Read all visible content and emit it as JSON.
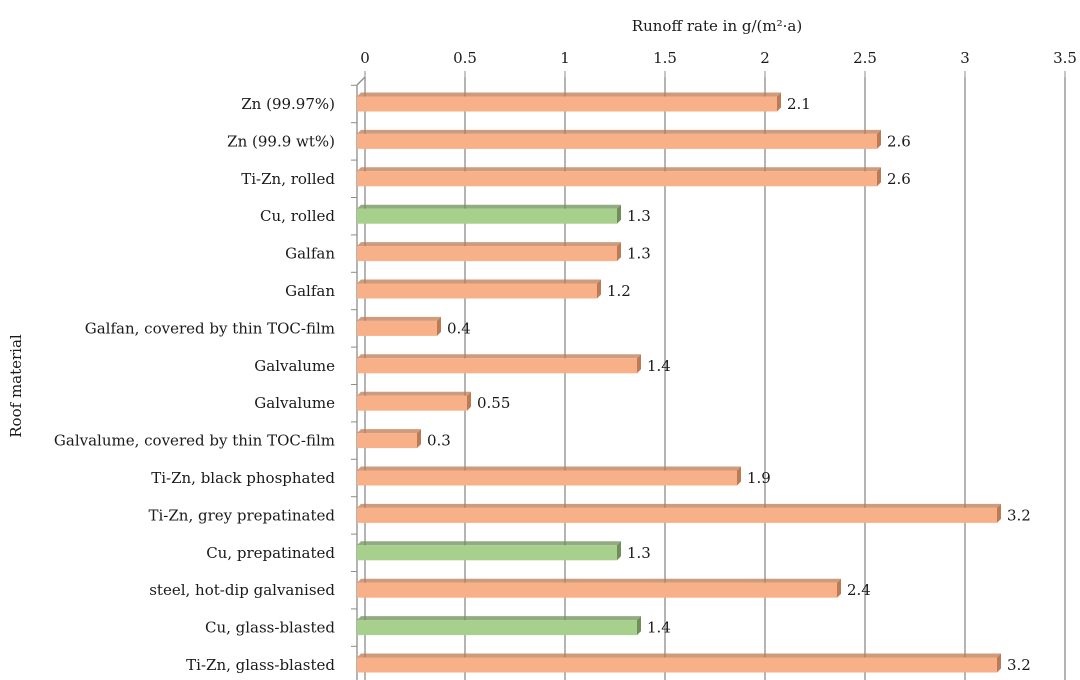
{
  "chart_data": {
    "type": "bar",
    "orientation": "horizontal",
    "style": "3d",
    "title": "",
    "xlabel": "Runoff rate in g/(m²·a)",
    "ylabel": "Roof material",
    "xlim": [
      0,
      3.5
    ],
    "xticks": [
      "0",
      "0.5",
      "1",
      "1.5",
      "2",
      "2.5",
      "3",
      "3.5"
    ],
    "xtick_values": [
      0,
      0.5,
      1,
      1.5,
      2,
      2.5,
      3,
      3.5
    ],
    "grid": true,
    "x_axis_position": "top",
    "categories": [
      "Zn (99.97%)",
      "Zn (99.9 wt%)",
      "Ti-Zn, rolled",
      "Cu, rolled",
      "Galfan",
      "Galfan",
      "Galfan, covered by thin TOC-film",
      "Galvalume",
      "Galvalume",
      "Galvalume, covered by thin TOC-film",
      "Ti-Zn, black phosphated",
      "Ti-Zn, grey prepatinated",
      "Cu, prepatinated",
      "steel, hot-dip galvanised",
      "Cu, glass-blasted",
      "Ti-Zn, glass-blasted"
    ],
    "values": [
      2.1,
      2.6,
      2.6,
      1.3,
      1.3,
      1.2,
      0.4,
      1.4,
      0.55,
      0.3,
      1.9,
      3.2,
      1.3,
      2.4,
      1.4,
      3.2
    ],
    "labels": [
      "2.1",
      "2.6",
      "2.6",
      "1.3",
      "1.3",
      "1.2",
      "0.4",
      "1.4",
      "0.55",
      "0.3",
      "1.9",
      "3.2",
      "1.3",
      "2.4",
      "1.4",
      "3.2"
    ],
    "bar_colors": [
      "orange",
      "orange",
      "orange",
      "green",
      "orange",
      "orange",
      "orange",
      "orange",
      "orange",
      "orange",
      "orange",
      "orange",
      "green",
      "orange",
      "green",
      "orange"
    ],
    "colors": {
      "orange": "#F7B088",
      "orange_side": "#BE7A52",
      "green": "#A7D08C",
      "green_side": "#6E8F58",
      "grid": "#8C8C8C"
    }
  }
}
